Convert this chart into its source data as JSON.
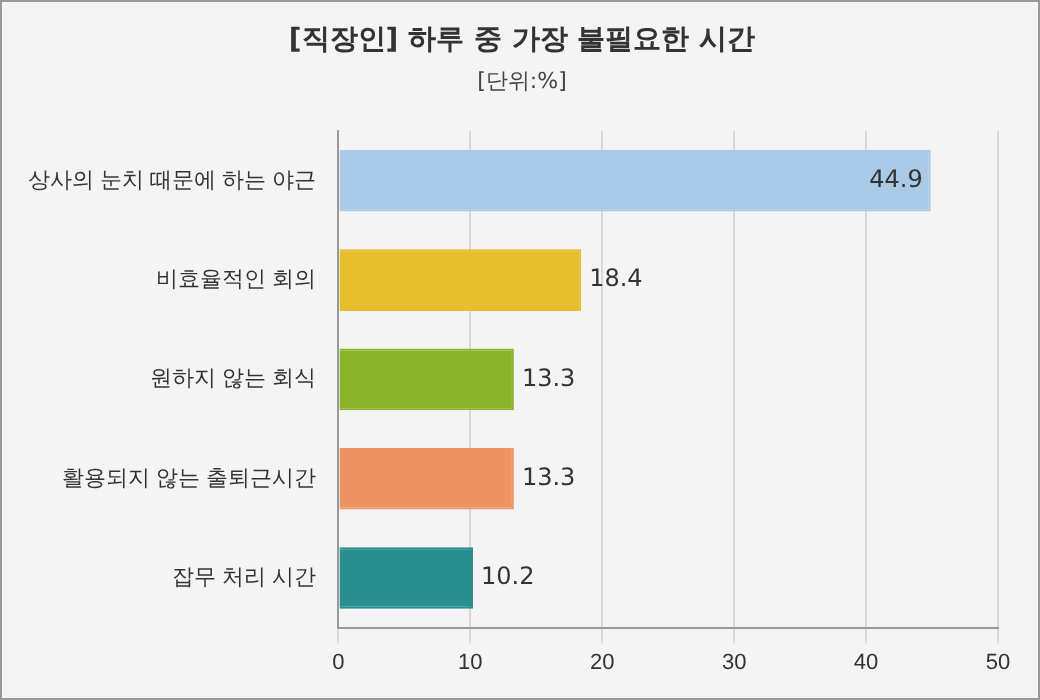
{
  "chart_data": {
    "type": "bar",
    "orientation": "horizontal",
    "title": "[직장인] 하루 중 가장 불필요한 시간",
    "subtitle": "[단위:%]",
    "categories": [
      "상사의 눈치 때문에 하는 야근",
      "비효율적인 회의",
      "원하지 않는 회식",
      "활용되지 않는 출퇴근시간",
      "잡무 처리 시간"
    ],
    "values": [
      44.9,
      18.4,
      13.3,
      13.3,
      10.2
    ],
    "colors": [
      "#a9c9e6",
      "#e6be2e",
      "#8ab52a",
      "#ee9463",
      "#2a8f8f"
    ],
    "xlim": [
      0,
      50
    ],
    "xticks": [
      0,
      10,
      20,
      30,
      40,
      50
    ],
    "grid": "x",
    "data_labels": true
  }
}
